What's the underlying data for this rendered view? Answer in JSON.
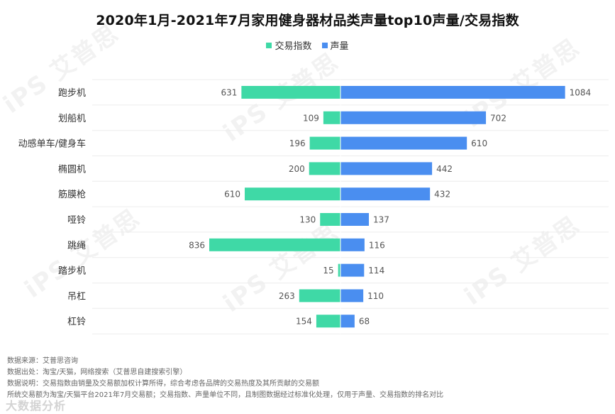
{
  "title": "2020年1月-2021年7月家用健身器材品类声量top10声量/交易指数",
  "legend": [
    {
      "label": "交易指数",
      "color": "#3fd9a6"
    },
    {
      "label": "声量",
      "color": "#4a8ef0"
    }
  ],
  "chart_data": {
    "type": "bar",
    "orientation": "horizontal-diverging",
    "title": "2020年1月-2021年7月家用健身器材品类声量top10声量/交易指数",
    "categories": [
      "跑步机",
      "划船机",
      "动感单车/健身车",
      "椭圆机",
      "筋膜枪",
      "哑铃",
      "跳绳",
      "踏步机",
      "吊杠",
      "杠铃"
    ],
    "series": [
      {
        "name": "交易指数",
        "color": "#3fd9a6",
        "direction": "left",
        "values": [
          631,
          109,
          196,
          200,
          610,
          130,
          836,
          15,
          263,
          154
        ]
      },
      {
        "name": "声量",
        "color": "#4a8ef0",
        "direction": "right",
        "values": [
          1084,
          702,
          610,
          442,
          432,
          137,
          116,
          114,
          110,
          68
        ]
      }
    ],
    "grid": "horizontal-rows",
    "legend_position": "top-center"
  },
  "notes": [
    "数据来源：艾普思咨询",
    "数据出处：淘宝/天猫，网络搜索（艾普思自建搜索引擎）",
    "数据说明：交易指数由销量及交易额加权计算所得，综合考虑各品牌的交易热度及其所贡献的交易额",
    "         所统交易额为淘宝/天猫平台2021年7月交易额；交易指数、声量单位不同，且制图数据经过标准化处理，仅用于声量、交易指数的排名对比"
  ],
  "watermark_text": "iPS 艾普思",
  "brand_mark": "大数据分析"
}
